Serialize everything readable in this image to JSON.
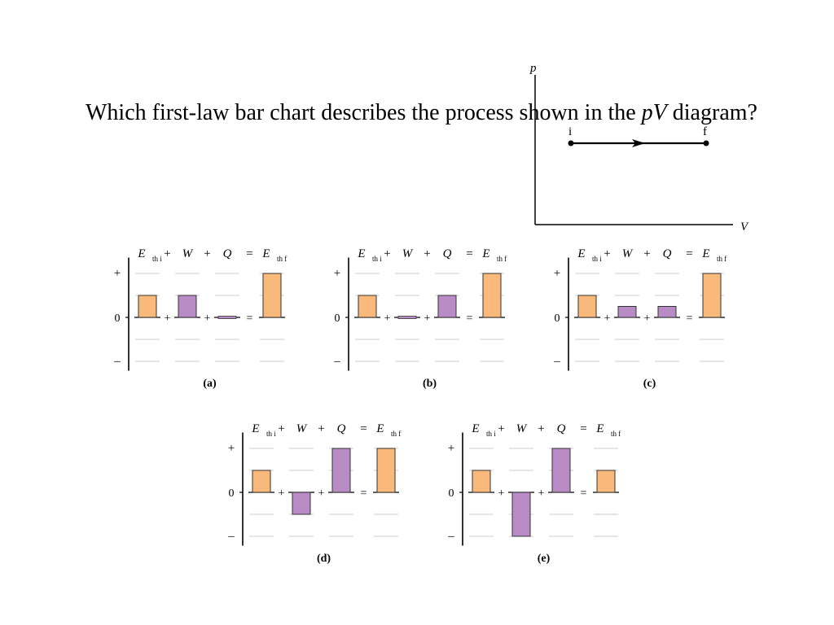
{
  "question": {
    "part1": "Which first-law bar chart describes the process shown in the ",
    "part2_italic": "pV",
    "part3": " diagram?"
  },
  "pv_diagram": {
    "y_axis_label": "p",
    "x_axis_label": "V",
    "start_label": "i",
    "end_label": "f",
    "process": "isobaric expansion (i → f)"
  },
  "bar_charts": {
    "terms": [
      "E",
      "W",
      "Q",
      "E"
    ],
    "term_subscripts": [
      "th i",
      "",
      "",
      "th f"
    ],
    "operators": [
      "+",
      "+",
      "="
    ],
    "y_ticks": [
      "+",
      "0",
      "–"
    ],
    "colors": {
      "energy": "#F8B97A",
      "work": "#B98BC4",
      "grid": "#cccccc"
    },
    "charts": [
      {
        "caption": "(a)",
        "values": [
          1,
          1,
          0,
          2
        ]
      },
      {
        "caption": "(b)",
        "values": [
          1,
          0,
          1,
          2
        ]
      },
      {
        "caption": "(c)",
        "values": [
          1,
          0.5,
          0.5,
          2
        ]
      },
      {
        "caption": "(d)",
        "values": [
          1,
          -1,
          2,
          2
        ]
      },
      {
        "caption": "(e)",
        "values": [
          1,
          -2,
          2,
          1
        ]
      }
    ]
  }
}
